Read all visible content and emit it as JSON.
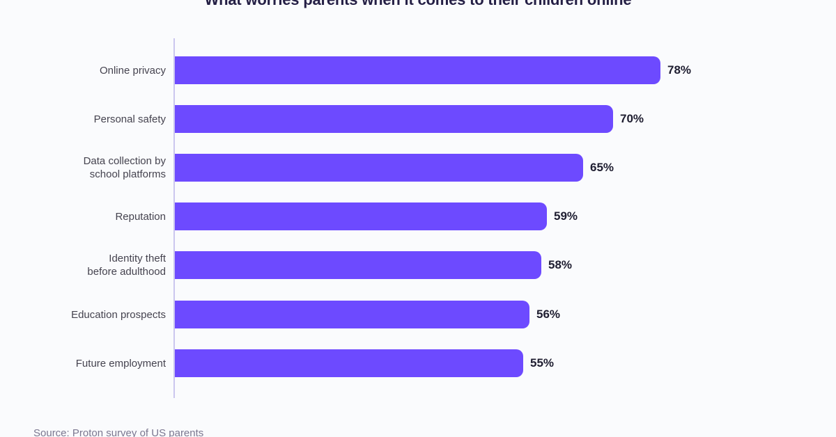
{
  "title": "What worries parents when it comes to their children online",
  "source_note": "Source: Proton survey of US parents",
  "colors": {
    "background": "#fafbfd",
    "bar": "#6d4aff",
    "axis_line": "#cbc6ef",
    "title_text": "#241f45",
    "category_label_text": "#45434f",
    "value_label_text": "#1e1d30",
    "source_text": "#7b7790"
  },
  "chart_data": {
    "type": "bar",
    "orientation": "horizontal",
    "title": "What worries parents when it comes to their children online",
    "categories": [
      "Online privacy",
      "Personal safety",
      "Data collection by school platforms",
      "Reputation",
      "Identity theft before adulthood",
      "Education prospects",
      "Future employment"
    ],
    "category_label_lines": [
      [
        "Online privacy"
      ],
      [
        "Personal safety"
      ],
      [
        "Data collection by",
        "school platforms"
      ],
      [
        "Reputation"
      ],
      [
        "Identity theft",
        "before adulthood"
      ],
      [
        "Education prospects"
      ],
      [
        "Future employment"
      ]
    ],
    "values": [
      78,
      70,
      65,
      59,
      58,
      56,
      55
    ],
    "value_labels": [
      "78%",
      "70%",
      "65%",
      "59%",
      "58%",
      "56%",
      "55%"
    ],
    "unit": "%",
    "xlim": [
      0,
      100
    ],
    "grid": false,
    "legend": false,
    "value_label_position": "end-of-bar",
    "source": "Source: Proton survey of US parents"
  }
}
